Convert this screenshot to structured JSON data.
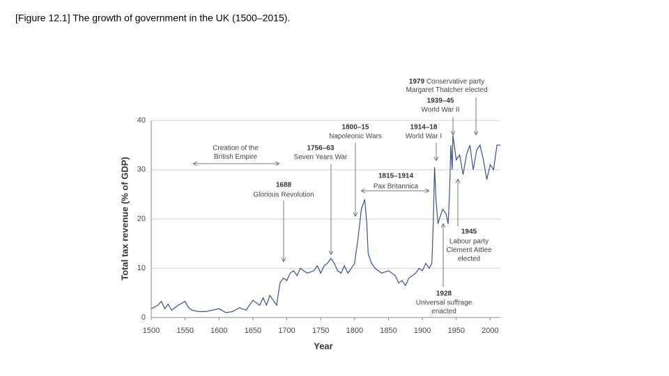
{
  "chart_data": {
    "type": "line",
    "title": "[Figure 12.1] The growth of government in the UK (1500–2015).",
    "x_label": "Year",
    "y_label": "Total tax revenue (% of GDP)",
    "xlim": [
      1500,
      2015
    ],
    "ylim": [
      0,
      40
    ],
    "xticks": [
      1500,
      1550,
      1600,
      1650,
      1700,
      1750,
      1800,
      1850,
      1900,
      1950,
      2000
    ],
    "yticks": [
      0,
      10,
      20,
      30,
      40
    ],
    "grid": true,
    "color": "#3a4f8a",
    "x": [
      1500,
      1510,
      1515,
      1520,
      1525,
      1530,
      1540,
      1550,
      1555,
      1560,
      1570,
      1580,
      1590,
      1600,
      1610,
      1620,
      1630,
      1640,
      1650,
      1660,
      1665,
      1670,
      1675,
      1680,
      1685,
      1690,
      1695,
      1700,
      1705,
      1710,
      1715,
      1720,
      1730,
      1740,
      1745,
      1750,
      1755,
      1760,
      1765,
      1770,
      1775,
      1780,
      1785,
      1790,
      1795,
      1800,
      1805,
      1810,
      1815,
      1818,
      1820,
      1825,
      1830,
      1840,
      1850,
      1860,
      1865,
      1870,
      1875,
      1880,
      1890,
      1895,
      1900,
      1905,
      1910,
      1914,
      1916,
      1918,
      1920,
      1923,
      1925,
      1930,
      1935,
      1938,
      1940,
      1942,
      1944,
      1945,
      1948,
      1950,
      1955,
      1960,
      1965,
      1970,
      1975,
      1980,
      1985,
      1990,
      1995,
      2000,
      2005,
      2010,
      2015
    ],
    "values": [
      1.8,
      2.5,
      3.3,
      1.8,
      2.7,
      1.5,
      2.5,
      3.3,
      2,
      1.5,
      1.2,
      1.2,
      1.5,
      1.8,
      1.0,
      1.2,
      2.0,
      1.5,
      3.5,
      2.5,
      4,
      2.5,
      4.5,
      3.5,
      2.5,
      7,
      8,
      7.5,
      9,
      9.5,
      8.5,
      10,
      9,
      9.5,
      10.5,
      9,
      10.5,
      11,
      12,
      11,
      9.5,
      9,
      10.5,
      9,
      10,
      11,
      16,
      22,
      24,
      19,
      13,
      11,
      10,
      9,
      9.5,
      8.5,
      7,
      7.5,
      6.5,
      8,
      9,
      10,
      9.5,
      11,
      10,
      11,
      19,
      30.5,
      24,
      19,
      20,
      22,
      21,
      19,
      25,
      35,
      30,
      37,
      34,
      32,
      33,
      29,
      33,
      35,
      30,
      34,
      35,
      32,
      28,
      31,
      30,
      35,
      35
    ],
    "annotations": [
      {
        "text": [
          "Creation of the",
          "British Empire"
        ]
      },
      {
        "label": "1688",
        "text": [
          "Glorious Revolution"
        ]
      },
      {
        "label": "1756–63",
        "text": [
          "Seven Years War"
        ]
      },
      {
        "label": "1800–15",
        "text": [
          "Napoleonic Wars"
        ]
      },
      {
        "label": "1815–1914",
        "text": [
          "Pax Britannica"
        ]
      },
      {
        "label": "1914–18",
        "text": [
          "World War I"
        ]
      },
      {
        "label": "1979",
        "text": [
          "Conservative party",
          "Margaret Thatcher elected"
        ]
      },
      {
        "label": "1939–45",
        "text": [
          "World War II"
        ]
      },
      {
        "label": "1945",
        "text": [
          "Labour party",
          "Clement Attlee",
          "elected"
        ]
      },
      {
        "label": "1928",
        "text": [
          "Universal suffrage",
          "enacted"
        ]
      }
    ]
  }
}
